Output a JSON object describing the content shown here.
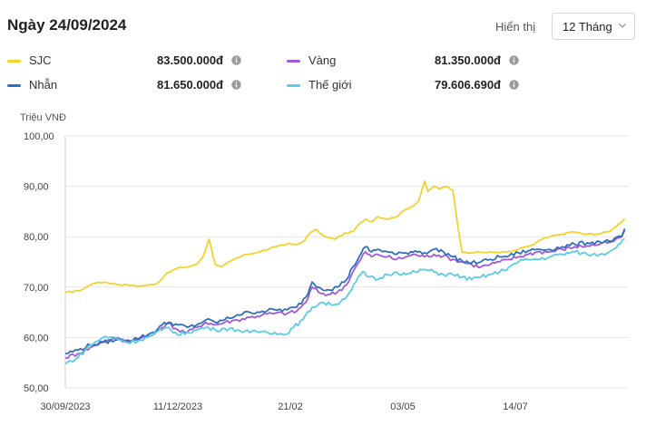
{
  "header": {
    "title": "Ngày 24/09/2024",
    "range_label": "Hiển thị",
    "range_value": "12 Tháng"
  },
  "legend": [
    {
      "name": "SJC",
      "value": "83.500.000đ",
      "color": "#F4D22E"
    },
    {
      "name": "Vàng",
      "value": "81.350.000đ",
      "color": "#A259D9"
    },
    {
      "name": "Nhẫn",
      "value": "81.650.000đ",
      "color": "#2F6FBF"
    },
    {
      "name": "Thế giới",
      "value": "79.606.690đ",
      "color": "#5CCBE6"
    }
  ],
  "chart_data": {
    "type": "line",
    "ylabel": "Triệu VNĐ",
    "ylim": [
      50,
      100
    ],
    "yticks": [
      "100,00",
      "90,00",
      "80,00",
      "70,00",
      "60,00",
      "50,00"
    ],
    "yticks_values": [
      100,
      90,
      80,
      70,
      60,
      50
    ],
    "xticks": [
      "30/09/2023",
      "11/12/2023",
      "21/02",
      "03/05",
      "14/07"
    ],
    "xticks_day_index": [
      0,
      72,
      144,
      216,
      288
    ],
    "x_range_days": [
      0,
      360
    ],
    "grid": true,
    "series": [
      {
        "name": "SJC",
        "color": "#F4D22E",
        "points": [
          [
            0,
            68.9
          ],
          [
            10,
            69.4
          ],
          [
            18,
            70.8
          ],
          [
            25,
            71.0
          ],
          [
            32,
            70.6
          ],
          [
            40,
            70.4
          ],
          [
            48,
            70.2
          ],
          [
            56,
            70.5
          ],
          [
            60,
            71.0
          ],
          [
            64,
            72.5
          ],
          [
            68,
            73.2
          ],
          [
            72,
            73.8
          ],
          [
            78,
            74.0
          ],
          [
            84,
            74.5
          ],
          [
            88,
            76.0
          ],
          [
            92,
            79.5
          ],
          [
            96,
            74.5
          ],
          [
            100,
            74.0
          ],
          [
            108,
            75.5
          ],
          [
            116,
            76.5
          ],
          [
            124,
            77.0
          ],
          [
            130,
            77.5
          ],
          [
            136,
            78.2
          ],
          [
            142,
            78.6
          ],
          [
            148,
            78.4
          ],
          [
            152,
            79.0
          ],
          [
            156,
            80.5
          ],
          [
            160,
            81.5
          ],
          [
            166,
            80.0
          ],
          [
            172,
            79.5
          ],
          [
            178,
            80.5
          ],
          [
            184,
            81.0
          ],
          [
            188,
            82.5
          ],
          [
            192,
            83.5
          ],
          [
            196,
            83.0
          ],
          [
            200,
            84.0
          ],
          [
            206,
            83.5
          ],
          [
            212,
            84.0
          ],
          [
            218,
            85.5
          ],
          [
            222,
            86.0
          ],
          [
            226,
            87.0
          ],
          [
            230,
            91.0
          ],
          [
            232,
            89.0
          ],
          [
            236,
            90.0
          ],
          [
            240,
            89.5
          ],
          [
            244,
            90.0
          ],
          [
            248,
            89.2
          ],
          [
            252,
            80.5
          ],
          [
            254,
            76.9
          ],
          [
            265,
            76.9
          ],
          [
            275,
            76.9
          ],
          [
            285,
            77.0
          ],
          [
            290,
            77.5
          ],
          [
            295,
            78.0
          ],
          [
            300,
            78.5
          ],
          [
            305,
            79.5
          ],
          [
            310,
            80.0
          ],
          [
            318,
            80.5
          ],
          [
            325,
            81.0
          ],
          [
            332,
            80.5
          ],
          [
            340,
            80.5
          ],
          [
            348,
            81.0
          ],
          [
            354,
            82.5
          ],
          [
            358,
            83.5
          ]
        ]
      },
      {
        "name": "Vàng",
        "color": "#A259D9",
        "points": [
          [
            0,
            56.0
          ],
          [
            8,
            56.8
          ],
          [
            16,
            58.0
          ],
          [
            24,
            59.2
          ],
          [
            32,
            59.8
          ],
          [
            40,
            59.3
          ],
          [
            48,
            59.8
          ],
          [
            56,
            60.5
          ],
          [
            62,
            62.0
          ],
          [
            66,
            62.8
          ],
          [
            72,
            61.5
          ],
          [
            78,
            61.0
          ],
          [
            84,
            62.0
          ],
          [
            90,
            63.0
          ],
          [
            96,
            62.5
          ],
          [
            102,
            63.0
          ],
          [
            110,
            63.5
          ],
          [
            118,
            64.0
          ],
          [
            126,
            64.5
          ],
          [
            134,
            64.8
          ],
          [
            142,
            64.8
          ],
          [
            148,
            65.2
          ],
          [
            154,
            67.0
          ],
          [
            158,
            70.0
          ],
          [
            162,
            69.0
          ],
          [
            168,
            68.5
          ],
          [
            174,
            69.0
          ],
          [
            180,
            70.5
          ],
          [
            184,
            73.0
          ],
          [
            188,
            75.0
          ],
          [
            192,
            77.0
          ],
          [
            196,
            76.0
          ],
          [
            200,
            76.5
          ],
          [
            206,
            76.0
          ],
          [
            212,
            75.5
          ],
          [
            218,
            76.0
          ],
          [
            224,
            76.5
          ],
          [
            230,
            76.0
          ],
          [
            236,
            76.5
          ],
          [
            242,
            76.2
          ],
          [
            248,
            75.5
          ],
          [
            254,
            75.0
          ],
          [
            260,
            74.5
          ],
          [
            266,
            74.0
          ],
          [
            272,
            74.5
          ],
          [
            278,
            75.0
          ],
          [
            284,
            75.5
          ],
          [
            290,
            76.0
          ],
          [
            296,
            76.5
          ],
          [
            302,
            77.0
          ],
          [
            310,
            77.0
          ],
          [
            318,
            77.5
          ],
          [
            326,
            78.0
          ],
          [
            334,
            78.2
          ],
          [
            342,
            78.5
          ],
          [
            350,
            79.0
          ],
          [
            356,
            80.0
          ],
          [
            358,
            81.3
          ]
        ]
      },
      {
        "name": "Nhẫn",
        "color": "#2F6FBF",
        "points": [
          [
            0,
            56.8
          ],
          [
            8,
            57.5
          ],
          [
            16,
            58.5
          ],
          [
            24,
            59.0
          ],
          [
            32,
            59.5
          ],
          [
            40,
            59.5
          ],
          [
            48,
            60.0
          ],
          [
            56,
            61.0
          ],
          [
            62,
            62.5
          ],
          [
            66,
            63.0
          ],
          [
            72,
            62.5
          ],
          [
            78,
            62.0
          ],
          [
            84,
            62.5
          ],
          [
            90,
            63.5
          ],
          [
            96,
            63.0
          ],
          [
            102,
            63.5
          ],
          [
            110,
            64.5
          ],
          [
            118,
            65.0
          ],
          [
            126,
            65.2
          ],
          [
            134,
            65.5
          ],
          [
            142,
            65.5
          ],
          [
            148,
            66.0
          ],
          [
            154,
            68.0
          ],
          [
            158,
            71.0
          ],
          [
            162,
            70.0
          ],
          [
            168,
            69.5
          ],
          [
            174,
            70.0
          ],
          [
            180,
            71.5
          ],
          [
            184,
            74.0
          ],
          [
            188,
            76.0
          ],
          [
            192,
            78.0
          ],
          [
            196,
            77.0
          ],
          [
            200,
            77.5
          ],
          [
            206,
            77.0
          ],
          [
            212,
            76.5
          ],
          [
            218,
            76.8
          ],
          [
            224,
            77.2
          ],
          [
            230,
            76.8
          ],
          [
            236,
            77.5
          ],
          [
            242,
            77.0
          ],
          [
            248,
            76.0
          ],
          [
            254,
            75.2
          ],
          [
            260,
            74.8
          ],
          [
            266,
            75.0
          ],
          [
            272,
            75.5
          ],
          [
            278,
            76.0
          ],
          [
            284,
            76.2
          ],
          [
            290,
            76.8
          ],
          [
            296,
            77.2
          ],
          [
            302,
            77.5
          ],
          [
            310,
            77.5
          ],
          [
            318,
            78.0
          ],
          [
            326,
            78.5
          ],
          [
            334,
            78.8
          ],
          [
            342,
            79.0
          ],
          [
            350,
            79.2
          ],
          [
            356,
            80.0
          ],
          [
            358,
            81.6
          ]
        ]
      },
      {
        "name": "Thế giới",
        "color": "#5CCBE6",
        "points": [
          [
            0,
            54.8
          ],
          [
            8,
            56.0
          ],
          [
            16,
            58.5
          ],
          [
            24,
            60.0
          ],
          [
            32,
            60.0
          ],
          [
            40,
            59.0
          ],
          [
            48,
            59.5
          ],
          [
            56,
            60.5
          ],
          [
            62,
            61.5
          ],
          [
            66,
            62.0
          ],
          [
            72,
            60.5
          ],
          [
            78,
            61.0
          ],
          [
            84,
            61.5
          ],
          [
            90,
            62.0
          ],
          [
            96,
            61.5
          ],
          [
            102,
            61.8
          ],
          [
            110,
            61.5
          ],
          [
            118,
            61.0
          ],
          [
            126,
            61.2
          ],
          [
            134,
            61.0
          ],
          [
            140,
            60.5
          ],
          [
            146,
            62.0
          ],
          [
            152,
            63.5
          ],
          [
            158,
            66.0
          ],
          [
            164,
            67.0
          ],
          [
            170,
            66.5
          ],
          [
            176,
            67.0
          ],
          [
            182,
            69.0
          ],
          [
            186,
            71.0
          ],
          [
            190,
            73.0
          ],
          [
            194,
            72.0
          ],
          [
            200,
            71.5
          ],
          [
            206,
            72.5
          ],
          [
            212,
            73.0
          ],
          [
            218,
            72.5
          ],
          [
            224,
            73.0
          ],
          [
            230,
            73.5
          ],
          [
            236,
            73.0
          ],
          [
            242,
            72.5
          ],
          [
            248,
            72.5
          ],
          [
            254,
            72.0
          ],
          [
            260,
            71.5
          ],
          [
            266,
            72.0
          ],
          [
            272,
            72.5
          ],
          [
            278,
            73.0
          ],
          [
            284,
            74.0
          ],
          [
            290,
            75.0
          ],
          [
            296,
            75.5
          ],
          [
            302,
            75.5
          ],
          [
            310,
            76.0
          ],
          [
            318,
            76.5
          ],
          [
            326,
            77.0
          ],
          [
            334,
            76.5
          ],
          [
            342,
            76.5
          ],
          [
            348,
            77.0
          ],
          [
            354,
            78.5
          ],
          [
            358,
            79.6
          ]
        ]
      }
    ]
  }
}
